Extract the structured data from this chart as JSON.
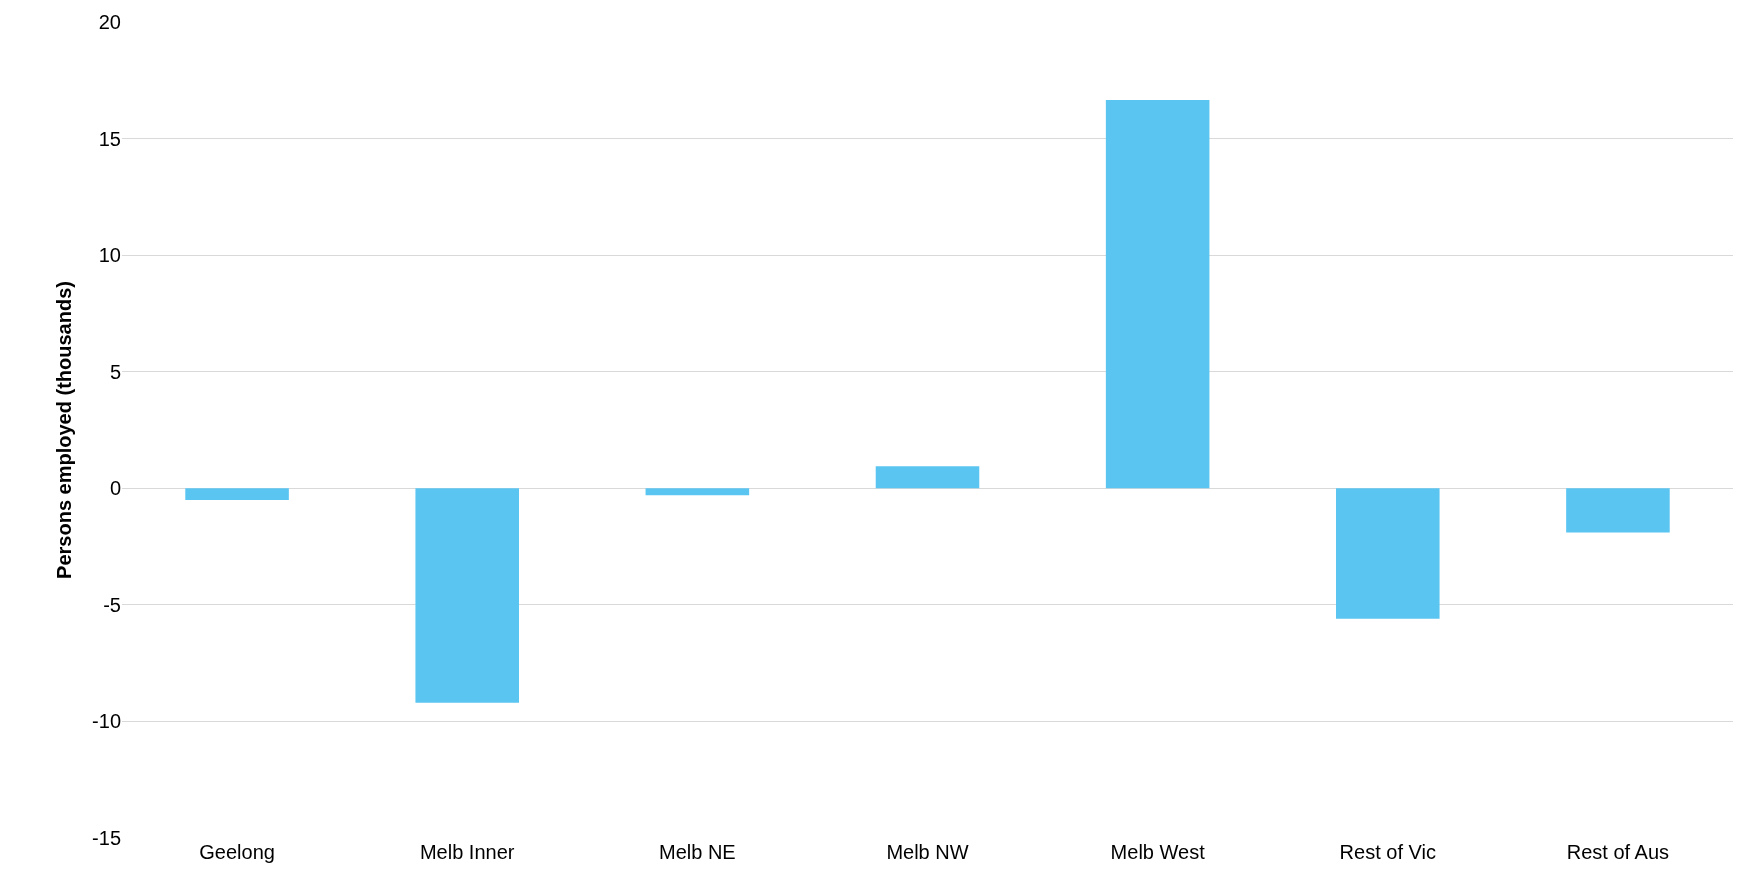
{
  "chart_data": {
    "type": "bar",
    "ylabel": "Persons employed (thousands)",
    "categories": [
      "Geelong",
      "Melb Inner",
      "Melb NE",
      "Melb NW",
      "Melb West",
      "Rest of Vic",
      "Rest of Aus"
    ],
    "values": [
      -0.5,
      -9.2,
      -0.3,
      0.95,
      16.65,
      -5.6,
      -1.9
    ],
    "color": "#5bc5f2",
    "ylim": [
      -15,
      20
    ],
    "yticks": [
      -15,
      -10,
      -5,
      0,
      5,
      10,
      15,
      20
    ],
    "grid": "y",
    "legend": false
  }
}
